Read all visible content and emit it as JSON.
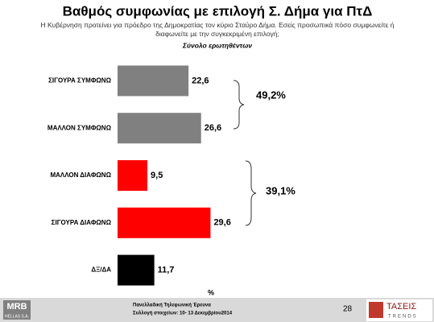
{
  "chart_data": {
    "type": "hbar",
    "title": "Βαθμός συμφωνίας με επιλογή Σ. Δήμα για ΠτΔ",
    "subtitle": "Η Κυβέρνηση προτείνει για πρόεδρο της Δημοκρατίας τον κύριο Σταύρο Δήμα. Εσείς προσωπικά πόσο συμφωνείτε ή διαφωνείτε με την συγκεκριμένη επιλογή;",
    "subtitle2": "Σύνολο ερωτηθέντων",
    "categories": [
      "ΣΙΓΟΥΡΑ ΣΥΜΦΩΝΩ",
      "ΜΑΛΛΟΝ ΣΥΜΦΩΝΩ",
      "ΜΑΛΛΟΝ ΔΙΑΦΩΝΩ",
      "ΣΙΓΟΥΡΑ ΔΙΑΦΩΝΩ",
      "ΔΞ/ΔΑ"
    ],
    "values": [
      22.6,
      26.6,
      9.5,
      29.6,
      11.7
    ],
    "value_labels": [
      "22,6",
      "26,6",
      "9,5",
      "29,6",
      "11,7"
    ],
    "colors": [
      "#808080",
      "#808080",
      "#ff0000",
      "#ff0000",
      "#000000"
    ],
    "xlim": [
      0,
      100
    ],
    "xlabel": "%",
    "annotations": [
      "49,2%",
      "39,1%"
    ]
  },
  "footer": {
    "logo_left": "MRB",
    "logo_left_sub": "HELLAS S.A.",
    "line1": "Πανελλαδική Τηλεφωνική Έρευνα",
    "line2": "Συλλογή στοιχείων: 10- 13 Δεκεμβρίου2014",
    "page": "28",
    "logo_right": "ΤΑΣΕΙΣ",
    "logo_right_sub": "TRENDS"
  }
}
